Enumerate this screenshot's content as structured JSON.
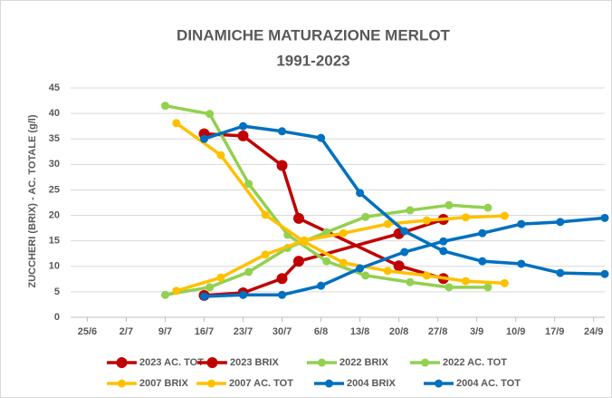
{
  "chart_data": {
    "type": "line",
    "title": "DINAMICHE MATURAZIONE MERLOT",
    "subtitle": "1991-2023",
    "y_label": "ZUCCHERI (BRIX) - AC. TOTALE (g/l)",
    "xlim": [
      173,
      269
    ],
    "xticks": [
      {
        "value": 176,
        "label": "25/6"
      },
      {
        "value": 183,
        "label": "2/7"
      },
      {
        "value": 190,
        "label": "9/7"
      },
      {
        "value": 197,
        "label": "16/7"
      },
      {
        "value": 204,
        "label": "23/7"
      },
      {
        "value": 211,
        "label": "30/7"
      },
      {
        "value": 218,
        "label": "6/8"
      },
      {
        "value": 225,
        "label": "13/8"
      },
      {
        "value": 232,
        "label": "20/8"
      },
      {
        "value": 239,
        "label": "27/8"
      },
      {
        "value": 246,
        "label": "3/9"
      },
      {
        "value": 253,
        "label": "10/9"
      },
      {
        "value": 260,
        "label": "17/9"
      },
      {
        "value": 267,
        "label": "24/9"
      }
    ],
    "ylim": [
      0,
      45
    ],
    "yticks": [
      0,
      5,
      10,
      15,
      20,
      25,
      30,
      35,
      40,
      45
    ],
    "grid": true,
    "legend": "bottom",
    "series": [
      {
        "name": "2023 AC. TOT",
        "color": "#c00000",
        "x": [
          197,
          204,
          211,
          214,
          232,
          240
        ],
        "values": [
          36,
          35.6,
          29.8,
          19.4,
          10.1,
          7.6
        ]
      },
      {
        "name": "2023 BRIX",
        "color": "#c00000",
        "x": [
          197,
          204,
          211,
          214,
          232,
          240
        ],
        "values": [
          4.3,
          4.8,
          7.6,
          11,
          16.4,
          19.2
        ]
      },
      {
        "name": "2022 BRIX",
        "color": "#92d050",
        "x": [
          190,
          198,
          205,
          212,
          219,
          226,
          234,
          241,
          248
        ],
        "values": [
          4.4,
          5.9,
          8.9,
          13.6,
          16.7,
          19.7,
          21,
          22,
          21.5
        ]
      },
      {
        "name": "2022 AC. TOT",
        "color": "#92d050",
        "x": [
          190,
          198,
          205,
          212,
          219,
          226,
          234,
          241,
          248
        ],
        "values": [
          41.5,
          39.9,
          26.2,
          16.2,
          11,
          8.2,
          6.9,
          5.9,
          5.9
        ]
      },
      {
        "name": "2007 BRIX",
        "color": "#ffc000",
        "x": [
          192,
          200,
          208,
          215,
          222,
          230,
          237,
          244,
          251
        ],
        "values": [
          5.2,
          7.8,
          12.3,
          15.1,
          16.5,
          18.3,
          19,
          19.6,
          19.9
        ]
      },
      {
        "name": "2007 AC. TOT",
        "color": "#ffc000",
        "x": [
          192,
          200,
          208,
          215,
          222,
          230,
          237,
          244,
          251
        ],
        "values": [
          38.1,
          31.8,
          20.1,
          14.8,
          10.7,
          9.1,
          8.2,
          7.1,
          6.7
        ]
      },
      {
        "name": "2004 BRIX",
        "color": "#0070c0",
        "x": [
          197,
          204,
          211,
          218,
          225,
          233,
          240,
          247,
          254,
          261,
          269
        ],
        "values": [
          4.1,
          4.4,
          4.4,
          6.2,
          9.6,
          12.8,
          14.9,
          16.5,
          18.3,
          18.7,
          19.5
        ]
      },
      {
        "name": "2004 AC. TOT",
        "color": "#0070c0",
        "x": [
          197,
          204,
          211,
          218,
          225,
          233,
          240,
          247,
          254,
          261,
          269
        ],
        "values": [
          35,
          37.5,
          36.5,
          35.2,
          24.4,
          16.9,
          13,
          11,
          10.5,
          8.7,
          8.5
        ]
      }
    ]
  }
}
